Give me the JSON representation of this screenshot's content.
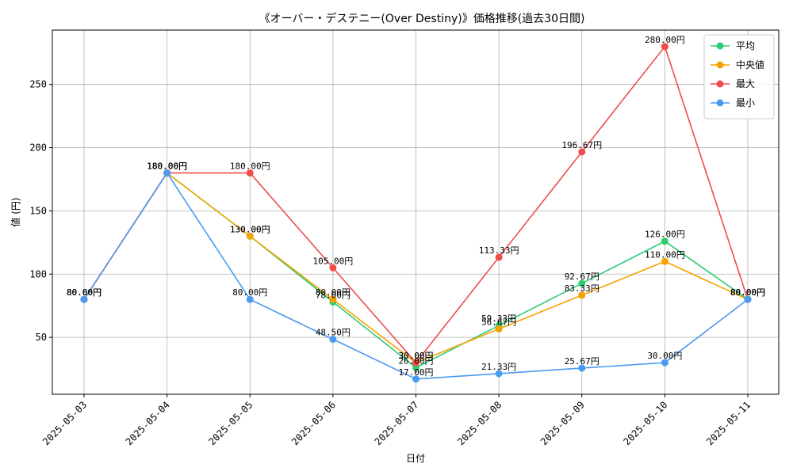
{
  "chart_data": {
    "type": "line",
    "title": "《オーバー・デステニー(Over Destiny)》価格推移(過去30日間)",
    "xlabel": "日付",
    "ylabel": "値 (円)",
    "categories": [
      "2025-05-03",
      "2025-05-04",
      "2025-05-05",
      "2025-05-06",
      "2025-05-07",
      "2025-05-08",
      "2025-05-09",
      "2025-05-10",
      "2025-05-11"
    ],
    "ylim": [
      5,
      293
    ],
    "yticks": [
      50,
      100,
      150,
      200,
      250
    ],
    "grid": true,
    "legend_position": "top-right",
    "label_suffix": "円",
    "series": [
      {
        "name": "平均",
        "color": "#2ecc71",
        "values": [
          80.0,
          180.0,
          130.0,
          78.0,
          26.0,
          59.33,
          92.67,
          126.0,
          80.0
        ]
      },
      {
        "name": "中央値",
        "color": "#f5a300",
        "values": [
          80.0,
          180.0,
          130.0,
          80.0,
          30.0,
          56.67,
          83.33,
          110.0,
          80.0
        ]
      },
      {
        "name": "最大",
        "color": "#ef4c4c",
        "values": [
          80.0,
          180.0,
          180.0,
          105.0,
          30.0,
          113.33,
          196.67,
          280.0,
          80.0
        ]
      },
      {
        "name": "最小",
        "color": "#4a9af0",
        "values": [
          80.0,
          180.0,
          80.0,
          48.5,
          17.0,
          21.33,
          25.67,
          30.0,
          80.0
        ]
      }
    ]
  }
}
